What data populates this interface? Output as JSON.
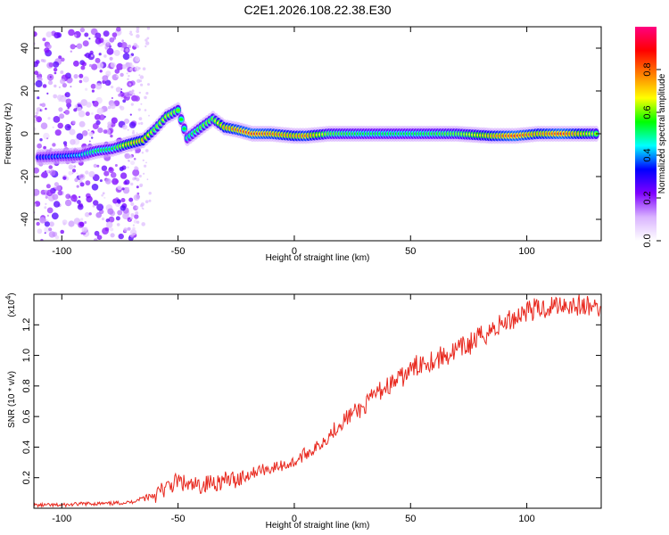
{
  "chart_data": [
    {
      "type": "heatmap",
      "title": "C2E1.2026.108.22.38.E30",
      "xlabel": "Height of straight line (km)",
      "ylabel": "Frequency (Hz)",
      "xlim": [
        -112,
        132
      ],
      "ylim": [
        -50,
        50
      ],
      "x_ticks": [
        -100,
        -50,
        0,
        50,
        100
      ],
      "y_ticks": [
        40,
        20,
        0,
        -20,
        -40
      ],
      "colorbar": {
        "label": "Normalized spectral amplitude",
        "range": [
          0,
          1
        ],
        "ticks": [
          "0.0",
          "0.2",
          "0.4",
          "0.6",
          "0.8"
        ],
        "colors": [
          "#ffffff",
          "#d9b3ff",
          "#7f00ff",
          "#0000ff",
          "#00ffff",
          "#00ff00",
          "#ffff00",
          "#ff8000",
          "#ff0000",
          "#ff0080"
        ]
      },
      "ridge_points": [
        {
          "x": -110,
          "y": -11,
          "a": 0.35
        },
        {
          "x": -100,
          "y": -10.5,
          "a": 0.4
        },
        {
          "x": -92,
          "y": -10,
          "a": 0.45
        },
        {
          "x": -85,
          "y": -8,
          "a": 0.55
        },
        {
          "x": -78,
          "y": -7,
          "a": 0.55
        },
        {
          "x": -72,
          "y": -5,
          "a": 0.7
        },
        {
          "x": -65,
          "y": -3,
          "a": 0.75
        },
        {
          "x": -60,
          "y": 2,
          "a": 0.6
        },
        {
          "x": -55,
          "y": 8,
          "a": 0.65
        },
        {
          "x": -50,
          "y": 11,
          "a": 0.6
        },
        {
          "x": -46,
          "y": -2,
          "a": 0.5
        },
        {
          "x": -40,
          "y": 3,
          "a": 0.6
        },
        {
          "x": -35,
          "y": 7,
          "a": 0.6
        },
        {
          "x": -30,
          "y": 3,
          "a": 0.75
        },
        {
          "x": -25,
          "y": 2,
          "a": 0.8
        },
        {
          "x": -18,
          "y": 0,
          "a": 0.85
        },
        {
          "x": -10,
          "y": 0,
          "a": 0.8
        },
        {
          "x": 0,
          "y": -1,
          "a": 0.75
        },
        {
          "x": 5,
          "y": -1,
          "a": 0.8
        },
        {
          "x": 15,
          "y": 0,
          "a": 0.6
        },
        {
          "x": 30,
          "y": 0,
          "a": 0.55
        },
        {
          "x": 50,
          "y": 0,
          "a": 0.55
        },
        {
          "x": 70,
          "y": 0,
          "a": 0.6
        },
        {
          "x": 85,
          "y": -1,
          "a": 0.75
        },
        {
          "x": 95,
          "y": -1,
          "a": 0.85
        },
        {
          "x": 105,
          "y": 0,
          "a": 0.75
        },
        {
          "x": 115,
          "y": 0,
          "a": 0.85
        },
        {
          "x": 125,
          "y": 0,
          "a": 0.7
        },
        {
          "x": 131,
          "y": 0,
          "a": 0.6
        }
      ]
    },
    {
      "type": "line",
      "xlabel": "Height of straight line (km)",
      "ylabel": "SNR (10 * v/v)",
      "y_scale_label": "(x10",
      "y_scale_exp": "4",
      "xlim": [
        -112,
        132
      ],
      "ylim": [
        0,
        1.4
      ],
      "x_ticks": [
        -100,
        -50,
        0,
        50,
        100
      ],
      "y_ticks": [
        "0.2",
        "0.4",
        "0.6",
        "0.8",
        "1.0",
        "1.2"
      ],
      "series": [
        {
          "name": "SNR",
          "color": "#e8281e",
          "x": [
            -112,
            -100,
            -90,
            -80,
            -70,
            -65,
            -60,
            -55,
            -50,
            -45,
            -40,
            -35,
            -30,
            -25,
            -20,
            -15,
            -10,
            -5,
            0,
            5,
            10,
            15,
            20,
            25,
            30,
            35,
            40,
            45,
            50,
            55,
            60,
            65,
            70,
            75,
            80,
            85,
            90,
            95,
            100,
            105,
            110,
            115,
            120,
            125,
            132
          ],
          "y": [
            0.02,
            0.02,
            0.03,
            0.03,
            0.04,
            0.07,
            0.09,
            0.13,
            0.18,
            0.14,
            0.15,
            0.17,
            0.18,
            0.19,
            0.22,
            0.25,
            0.26,
            0.28,
            0.3,
            0.36,
            0.4,
            0.48,
            0.56,
            0.62,
            0.66,
            0.75,
            0.8,
            0.84,
            0.9,
            0.96,
            0.97,
            1.0,
            1.03,
            1.07,
            1.12,
            1.17,
            1.21,
            1.25,
            1.3,
            1.3,
            1.32,
            1.34,
            1.33,
            1.32,
            1.31
          ]
        }
      ]
    }
  ]
}
